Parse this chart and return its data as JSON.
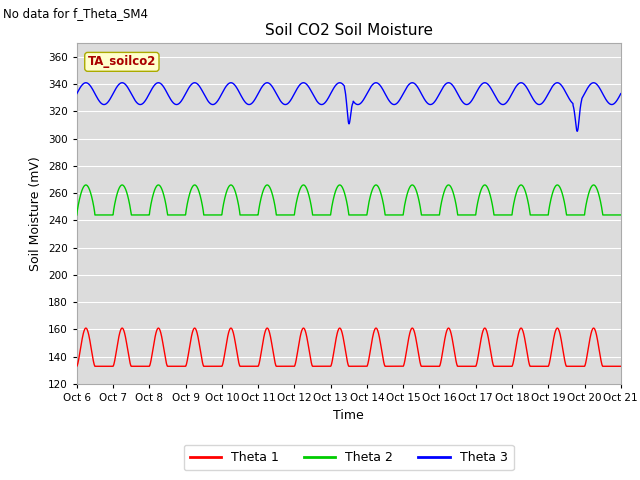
{
  "title": "Soil CO2 Soil Moisture",
  "subtitle": "No data for f_Theta_SM4",
  "ylabel": "Soil Moisture (mV)",
  "xlabel": "Time",
  "annotation": "TA_soilco2",
  "ylim": [
    120,
    370
  ],
  "yticks": [
    120,
    140,
    160,
    180,
    200,
    220,
    240,
    260,
    280,
    300,
    320,
    340,
    360
  ],
  "x_tick_labels": [
    "Oct 6",
    "Oct 7",
    "Oct 8",
    "Oct 9",
    "Oct 10",
    "Oct 11",
    "Oct 12",
    "Oct 13",
    "Oct 14",
    "Oct 15",
    "Oct 16",
    "Oct 17",
    "Oct 18",
    "Oct 19",
    "Oct 20",
    "Oct 21"
  ],
  "bg_color": "#dcdcdc",
  "grid_color": "#ffffff",
  "fig_color": "#ffffff",
  "theta1_color": "#ff0000",
  "theta2_color": "#00cc00",
  "theta3_color": "#0000ff",
  "theta1_base": 133,
  "theta1_amp": 28,
  "theta2_base": 244,
  "theta2_amp": 22,
  "theta3_base": 333,
  "theta3_amp": 8,
  "n_days": 15,
  "n_points": 3000
}
